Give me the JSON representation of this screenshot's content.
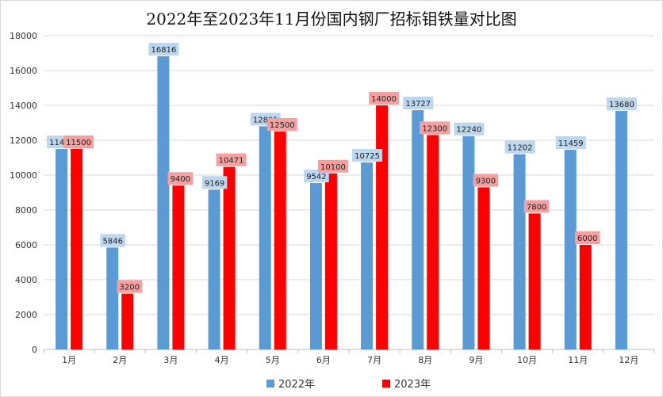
{
  "chart_data": {
    "type": "bar",
    "title": "2022年至2023年11月份国内钢厂招标钼铁量对比图",
    "xlabel": "",
    "ylabel": "",
    "categories": [
      "1月",
      "2月",
      "3月",
      "4月",
      "5月",
      "6月",
      "7月",
      "8月",
      "9月",
      "10月",
      "11月",
      "12月"
    ],
    "series": [
      {
        "name": "2022年",
        "color": "#5b9bd5",
        "label_bg": "#bdd7ee",
        "values": [
          11495,
          5846,
          16816,
          9169,
          12801,
          9542,
          10725,
          13727,
          12240,
          11202,
          11459,
          13680
        ]
      },
      {
        "name": "2023年",
        "color": "#ff0000",
        "label_bg": "#f4a0a0",
        "values": [
          11500,
          3200,
          9400,
          10471,
          12500,
          10100,
          14000,
          12300,
          9300,
          7800,
          6000,
          null
        ]
      }
    ],
    "ylim": [
      0,
      18000
    ],
    "yticks": [
      0,
      2000,
      4000,
      6000,
      8000,
      10000,
      12000,
      14000,
      16000,
      18000
    ],
    "grid": true,
    "legend_position": "bottom"
  }
}
